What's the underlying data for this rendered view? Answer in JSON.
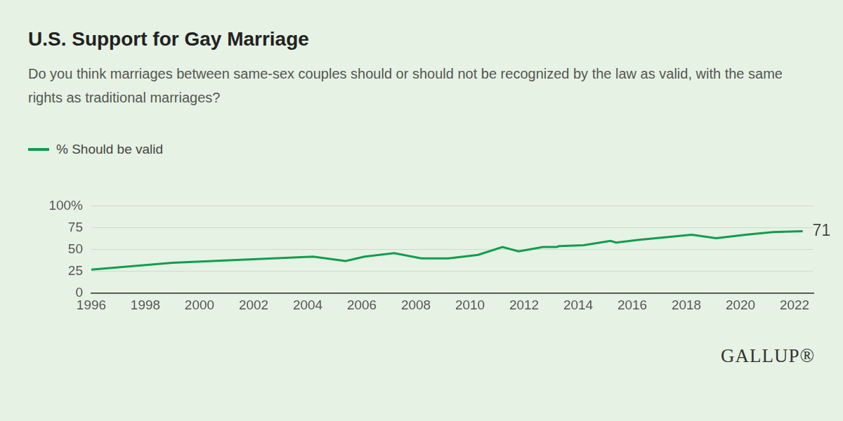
{
  "chart_data": {
    "type": "line",
    "title": "U.S. Support for Gay Marriage",
    "subtitle": "Do you think marriages between same-sex couples should or should not be recognized by the law as valid, with the same rights as traditional marriages?",
    "x": [
      1996.0,
      1999.0,
      2004.2,
      2005.4,
      2006.1,
      2007.2,
      2008.2,
      2009.2,
      2010.3,
      2011.2,
      2011.8,
      2012.7,
      2013.2,
      2013.3,
      2014.2,
      2015.2,
      2015.4,
      2016.2,
      2018.2,
      2019.1,
      2020.2,
      2021.2,
      2022.3
    ],
    "series": [
      {
        "name": "% Should be valid",
        "color": "#0f9d4f",
        "values": [
          27,
          35,
          42,
          37,
          42,
          46,
          40,
          40,
          44,
          53,
          48,
          53,
          53,
          54,
          55,
          60,
          58,
          61,
          67,
          63,
          67,
          70,
          71
        ]
      }
    ],
    "xlim": [
      1996,
      2022.7
    ],
    "xticks": [
      1996,
      1998,
      2000,
      2002,
      2004,
      2006,
      2008,
      2010,
      2012,
      2014,
      2016,
      2018,
      2020,
      2022
    ],
    "ylim": [
      0,
      100
    ],
    "yticks": [
      0,
      25,
      50,
      75,
      {
        "value": 100,
        "label": "100%"
      }
    ],
    "grid": "y",
    "legend": "top left",
    "annotations": [
      {
        "text": "71"
      }
    ],
    "source": "GALLUP®"
  }
}
